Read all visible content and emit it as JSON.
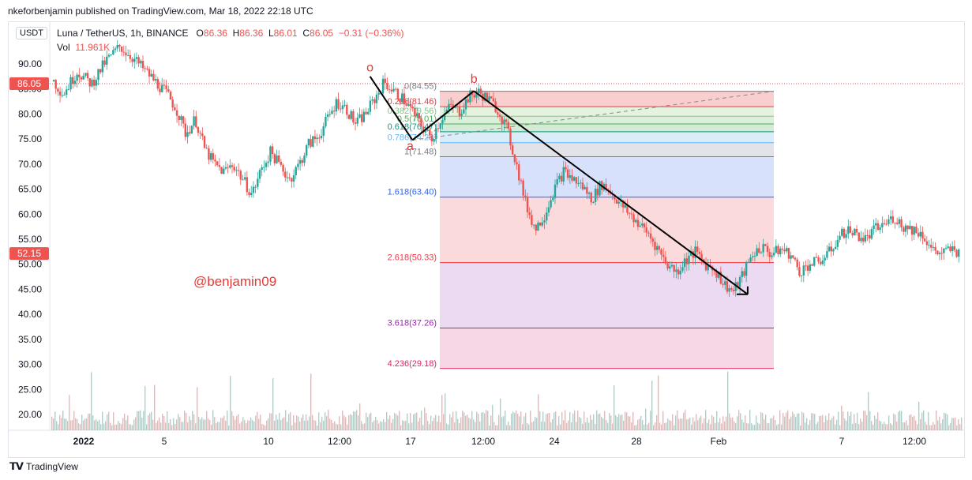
{
  "header": {
    "published_text": "nkeforbenjamin published on TradingView.com, Mar 18, 2022 22:18 UTC"
  },
  "currency_button": "USDT",
  "legend": {
    "symbol": "Luna / TetherUS, 1h, BINANCE",
    "o_label": "O",
    "o_value": "86.36",
    "h_label": "H",
    "h_value": "86.36",
    "l_label": "L",
    "l_value": "86.01",
    "c_label": "C",
    "c_value": "86.05",
    "change": "−0.31 (−0.36%)",
    "vol_label": "Vol",
    "vol_value": "11.961K"
  },
  "watermark": "@benjamin09",
  "footer": {
    "brand": "TradingView",
    "logo": "tradingview-logo"
  },
  "colors": {
    "up": "#26a69a",
    "down": "#ef5350",
    "accent_red": "#e53935",
    "fib_236": "#f23645",
    "fib_382": "#81c784",
    "fib_5": "#4caf50",
    "fib_618": "#089981",
    "fib_786": "#64b5f6",
    "fib_1": "#787b86",
    "fib_1618": "#2962ff",
    "fib_2618": "#f23645",
    "fib_3618": "#9c27b0",
    "fib_4236": "#e91e63"
  },
  "chart_data": {
    "type": "candlestick",
    "title": "Luna / TetherUS, 1h, BINANCE",
    "ylim": [
      17,
      95
    ],
    "y_ticks": [
      "90.00",
      "85.00",
      "80.00",
      "75.00",
      "70.00",
      "65.00",
      "60.00",
      "55.00",
      "50.00",
      "45.00",
      "40.00",
      "35.00",
      "30.00",
      "25.00",
      "20.00"
    ],
    "x_ticks": [
      "2022",
      "5",
      "10",
      "12:00",
      "17",
      "12:00",
      "24",
      "28",
      "Feb",
      "7",
      "12:00"
    ],
    "price_labels": [
      {
        "value": 86.05,
        "text": "86.05"
      },
      {
        "value": 52.15,
        "text": "52.15"
      }
    ],
    "price_path": [
      [
        0,
        86.5
      ],
      [
        2,
        84
      ],
      [
        5,
        88.5
      ],
      [
        8,
        86
      ],
      [
        11,
        90.5
      ],
      [
        14,
        93.5
      ],
      [
        17,
        91
      ],
      [
        20,
        88
      ],
      [
        22,
        86
      ],
      [
        24,
        84
      ],
      [
        26,
        81
      ],
      [
        28,
        76
      ],
      [
        30,
        79
      ],
      [
        32,
        73
      ],
      [
        34,
        70
      ],
      [
        36,
        68.5
      ],
      [
        38,
        70
      ],
      [
        40,
        67
      ],
      [
        42,
        64
      ],
      [
        44,
        69
      ],
      [
        46,
        72.5
      ],
      [
        48,
        69.5
      ],
      [
        50,
        67
      ],
      [
        52,
        70
      ],
      [
        54,
        74
      ],
      [
        56,
        75.5
      ],
      [
        58,
        79
      ],
      [
        60,
        82.5
      ],
      [
        62,
        81
      ],
      [
        64,
        78
      ],
      [
        66,
        80
      ],
      [
        68,
        83
      ],
      [
        70,
        86.4
      ],
      [
        72,
        84.5
      ],
      [
        74,
        83
      ],
      [
        76,
        80.5
      ],
      [
        78,
        77.5
      ],
      [
        80,
        75
      ],
      [
        82,
        79
      ],
      [
        84,
        81.5
      ],
      [
        86,
        80.5
      ],
      [
        88,
        83.5
      ],
      [
        90,
        84.3
      ],
      [
        92,
        83
      ],
      [
        94,
        81
      ],
      [
        96,
        77
      ],
      [
        98,
        70
      ],
      [
        100,
        62
      ],
      [
        102,
        57
      ],
      [
        104,
        60
      ],
      [
        106,
        65
      ],
      [
        108,
        68.5
      ],
      [
        110,
        67
      ],
      [
        112,
        65.5
      ],
      [
        114,
        63
      ],
      [
        116,
        66
      ],
      [
        118,
        64.5
      ],
      [
        120,
        62
      ],
      [
        122,
        60
      ],
      [
        124,
        58
      ],
      [
        126,
        56
      ],
      [
        128,
        53
      ],
      [
        130,
        50
      ],
      [
        132,
        48.5
      ],
      [
        134,
        51
      ],
      [
        136,
        52.5
      ],
      [
        138,
        50
      ],
      [
        140,
        49
      ],
      [
        142,
        46
      ],
      [
        144,
        44.5
      ],
      [
        146,
        48
      ],
      [
        148,
        52
      ],
      [
        150,
        53.5
      ],
      [
        152,
        52
      ],
      [
        154,
        53
      ],
      [
        156,
        52
      ],
      [
        158,
        48.5
      ],
      [
        160,
        50
      ],
      [
        162,
        50.5
      ],
      [
        164,
        52
      ],
      [
        166,
        55
      ],
      [
        168,
        57
      ],
      [
        170,
        56
      ],
      [
        172,
        55
      ],
      [
        174,
        57
      ],
      [
        176,
        58
      ],
      [
        178,
        59.5
      ],
      [
        180,
        57.5
      ],
      [
        182,
        57
      ],
      [
        184,
        56
      ],
      [
        186,
        53
      ],
      [
        188,
        52
      ],
      [
        190,
        53
      ],
      [
        192,
        52.15
      ]
    ],
    "volume_scale_note": "relative",
    "fib_levels": [
      {
        "ratio_label": "0(84.55)",
        "value": 84.55,
        "color_key": "fib_1"
      },
      {
        "ratio_label": "0.236(81.46)",
        "value": 81.46,
        "color_key": "fib_236"
      },
      {
        "ratio_label": "0.382(79.56)",
        "value": 79.56,
        "color_key": "fib_382"
      },
      {
        "ratio_label": "0.5(78.01)",
        "value": 78.01,
        "color_key": "fib_5"
      },
      {
        "ratio_label": "0.618(76.47)",
        "value": 76.47,
        "color_key": "fib_618"
      },
      {
        "ratio_label": "0.786(74.28)",
        "value": 74.28,
        "color_key": "fib_786"
      },
      {
        "ratio_label": "1(71.48)",
        "value": 71.48,
        "color_key": "fib_1"
      },
      {
        "ratio_label": "1.618(63.40)",
        "value": 63.4,
        "color_key": "fib_1618"
      },
      {
        "ratio_label": "2.618(50.33)",
        "value": 50.33,
        "color_key": "fib_2618"
      },
      {
        "ratio_label": "3.618(37.26)",
        "value": 37.26,
        "color_key": "fib_3618"
      },
      {
        "ratio_label": "4.236(29.18)",
        "value": 29.18,
        "color_key": "fib_4236"
      }
    ],
    "wave_labels": [
      {
        "text": "o",
        "t": 67,
        "value": 88.5
      },
      {
        "text": "a",
        "t": 75.5,
        "value": 72.8
      },
      {
        "text": "b",
        "t": 89,
        "value": 86.2
      }
    ],
    "wave_points": [
      {
        "t": 67,
        "value": 87.5
      },
      {
        "t": 76,
        "value": 74.8
      },
      {
        "t": 89,
        "value": 84.6
      },
      {
        "t": 147,
        "value": 44.0
      }
    ]
  }
}
